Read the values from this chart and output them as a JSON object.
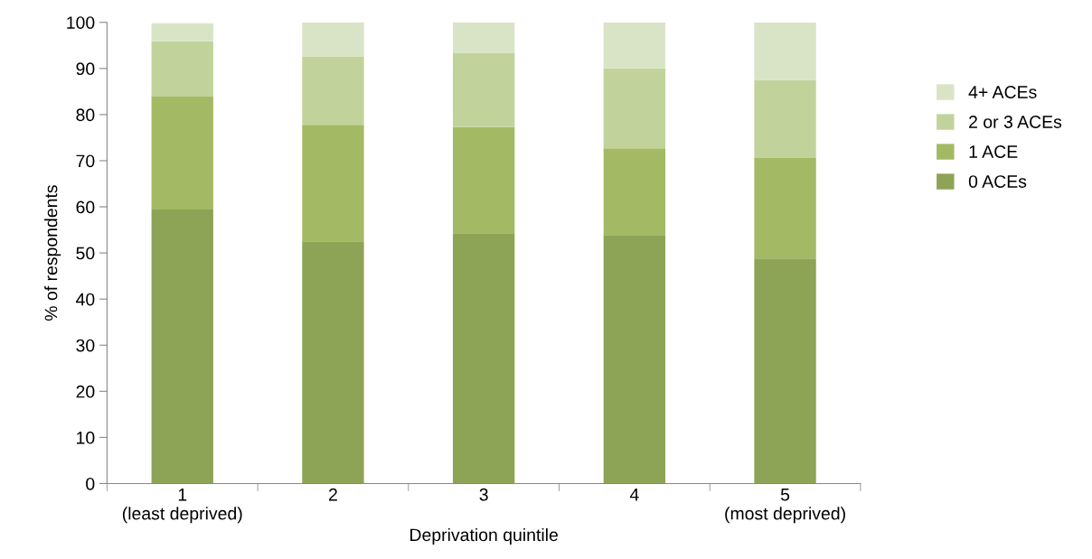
{
  "chart_data": {
    "type": "bar",
    "stacked": true,
    "xlabel": "Deprivation quintile",
    "ylabel": "% of respondents",
    "categories": [
      "1\n(least deprived)",
      "2",
      "3",
      "4",
      "5\n(most deprived)"
    ],
    "series": [
      {
        "name": "0 ACEs",
        "color": "#8da456",
        "values": [
          59.4,
          52.5,
          54.3,
          53.9,
          48.8
        ]
      },
      {
        "name": "1 ACE",
        "color": "#a4b964",
        "values": [
          24.5,
          25.3,
          23.0,
          18.8,
          21.8
        ]
      },
      {
        "name": "2 or 3 ACEs",
        "color": "#c1d39a",
        "values": [
          12.0,
          14.7,
          16.0,
          17.3,
          16.9
        ]
      },
      {
        "name": "4+ ACEs",
        "color": "#d9e4c6",
        "values": [
          3.9,
          7.5,
          6.7,
          10.0,
          12.5
        ]
      }
    ],
    "ylim": [
      0,
      100
    ],
    "yticks": [
      0,
      10,
      20,
      30,
      40,
      50,
      60,
      70,
      80,
      90,
      100
    ],
    "grid": false,
    "legend": "right"
  }
}
